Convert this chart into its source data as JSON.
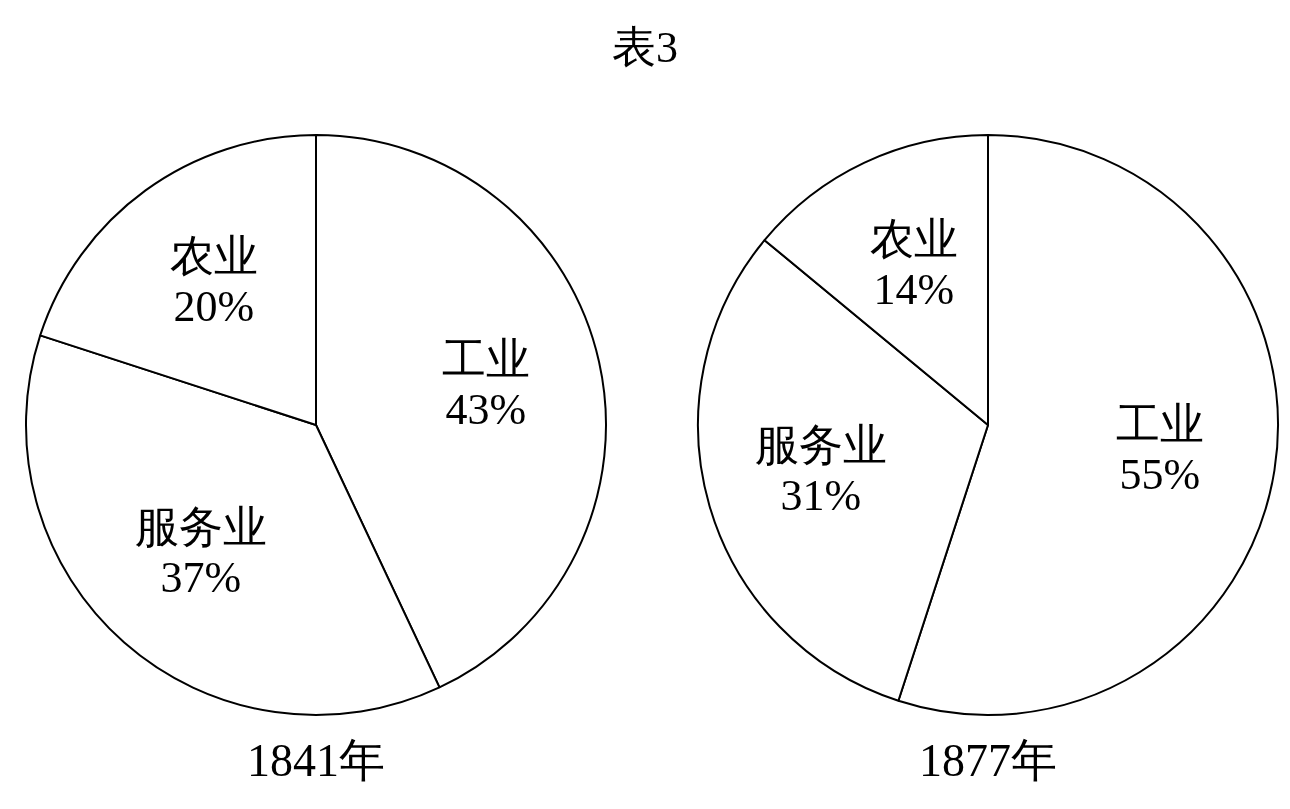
{
  "chart_data": [
    {
      "type": "pie",
      "title": "表3",
      "xlabel": "1841年",
      "categories": [
        "工业",
        "服务业",
        "农业"
      ],
      "values": [
        43,
        37,
        20
      ],
      "value_labels": [
        "43%",
        "37%",
        "20%"
      ],
      "colors": [
        "#ffffff",
        "#ffffff",
        "#ffffff"
      ],
      "legend": false
    },
    {
      "type": "pie",
      "xlabel": "1877年",
      "categories": [
        "工业",
        "服务业",
        "农业"
      ],
      "values": [
        55,
        31,
        14
      ],
      "value_labels": [
        "55%",
        "31%",
        "14%"
      ],
      "colors": [
        "#ffffff",
        "#ffffff",
        "#ffffff"
      ],
      "legend": false
    }
  ]
}
